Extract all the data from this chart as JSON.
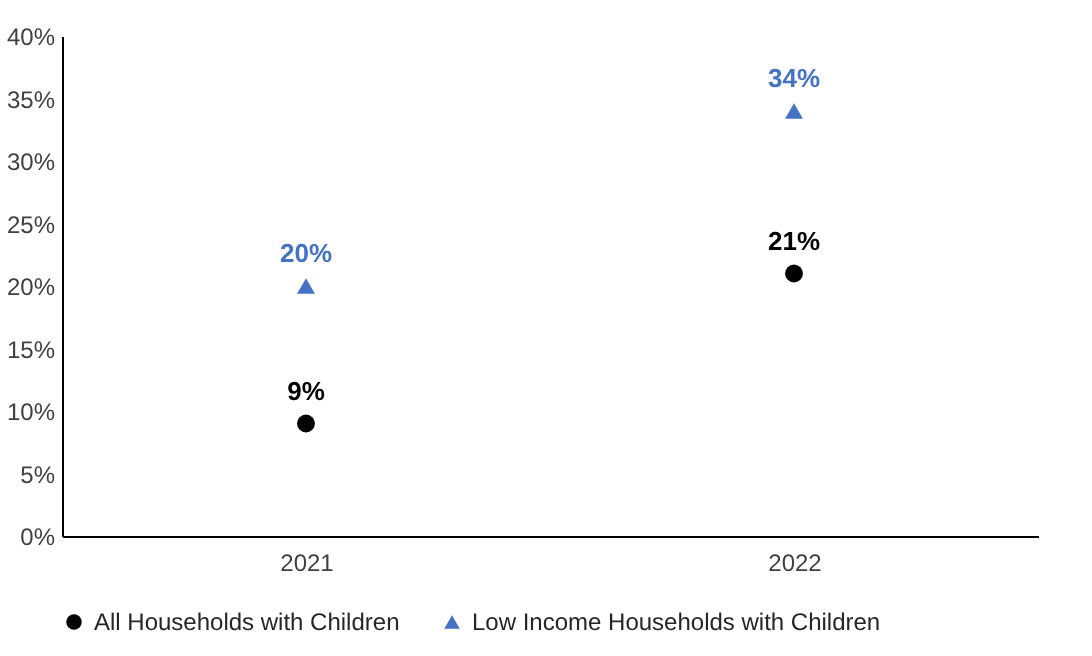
{
  "chart_data": {
    "type": "scatter",
    "categories": [
      "2021",
      "2022"
    ],
    "series": [
      {
        "name": "All Households with Children",
        "color": "#000000",
        "marker": "circle",
        "values": [
          9,
          21
        ],
        "value_labels": [
          "9%",
          "21%"
        ]
      },
      {
        "name": "Low Income Households with Children",
        "color": "#4472c4",
        "marker": "triangle",
        "values": [
          20,
          34
        ],
        "value_labels": [
          "20%",
          "34%"
        ]
      }
    ],
    "ylim": [
      0,
      40
    ],
    "yticks": [
      {
        "value": 0,
        "label": "0%"
      },
      {
        "value": 5,
        "label": "5%"
      },
      {
        "value": 10,
        "label": "10%"
      },
      {
        "value": 15,
        "label": "15%"
      },
      {
        "value": 20,
        "label": "20%"
      },
      {
        "value": 25,
        "label": "25%"
      },
      {
        "value": 30,
        "label": "30%"
      },
      {
        "value": 35,
        "label": "35%"
      },
      {
        "value": 40,
        "label": "40%"
      }
    ],
    "grid": false,
    "legend": "bottom"
  }
}
